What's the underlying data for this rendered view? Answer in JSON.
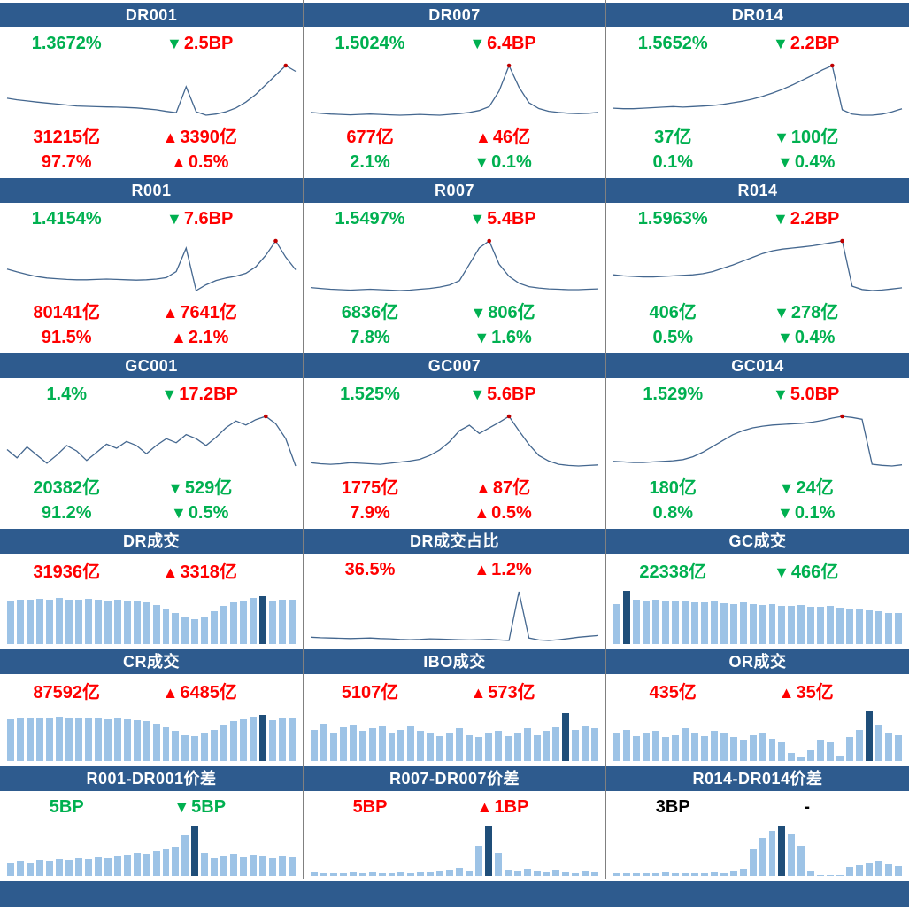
{
  "colors": {
    "up": "#ff0000",
    "down": "#00b050",
    "flat": "#000000",
    "header_bg": "#2e5b8e",
    "header_text": "#ffffff",
    "bar": "#9dc3e6",
    "bar_highlight": "#1f4e79",
    "line": "#44678f",
    "marker": "#c00000",
    "divider": "#808080"
  },
  "panels": [
    {
      "kind": "rate",
      "title": "DR001",
      "rate": "1.3672%",
      "rate_dir": "down",
      "change_arrow": "▼",
      "change_arrow_dir": "down",
      "change": "2.5BP",
      "change_dir": "up",
      "volume": "31215亿",
      "volume_dir": "up",
      "volume_arrow": "▲",
      "volume_arrow_dir": "up",
      "volume_change": "3390亿",
      "volume_change_dir": "up",
      "share": "97.7%",
      "share_dir": "up",
      "share_arrow": "▲",
      "share_arrow_dir": "up",
      "share_change": "0.5%",
      "share_change_dir": "up"
    },
    {
      "kind": "rate",
      "title": "DR007",
      "rate": "1.5024%",
      "rate_dir": "down",
      "change_arrow": "▼",
      "change_arrow_dir": "down",
      "change": "6.4BP",
      "change_dir": "up",
      "volume": "677亿",
      "volume_dir": "up",
      "volume_arrow": "▲",
      "volume_arrow_dir": "up",
      "volume_change": "46亿",
      "volume_change_dir": "up",
      "share": "2.1%",
      "share_dir": "down",
      "share_arrow": "▼",
      "share_arrow_dir": "down",
      "share_change": "0.1%",
      "share_change_dir": "down"
    },
    {
      "kind": "rate",
      "title": "DR014",
      "rate": "1.5652%",
      "rate_dir": "down",
      "change_arrow": "▼",
      "change_arrow_dir": "down",
      "change": "2.2BP",
      "change_dir": "up",
      "volume": "37亿",
      "volume_dir": "down",
      "volume_arrow": "▼",
      "volume_arrow_dir": "down",
      "volume_change": "100亿",
      "volume_change_dir": "down",
      "share": "0.1%",
      "share_dir": "down",
      "share_arrow": "▼",
      "share_arrow_dir": "down",
      "share_change": "0.4%",
      "share_change_dir": "down"
    },
    {
      "kind": "rate",
      "title": "R001",
      "rate": "1.4154%",
      "rate_dir": "down",
      "change_arrow": "▼",
      "change_arrow_dir": "down",
      "change": "7.6BP",
      "change_dir": "up",
      "volume": "80141亿",
      "volume_dir": "up",
      "volume_arrow": "▲",
      "volume_arrow_dir": "up",
      "volume_change": "7641亿",
      "volume_change_dir": "up",
      "share": "91.5%",
      "share_dir": "up",
      "share_arrow": "▲",
      "share_arrow_dir": "up",
      "share_change": "2.1%",
      "share_change_dir": "up"
    },
    {
      "kind": "rate",
      "title": "R007",
      "rate": "1.5497%",
      "rate_dir": "down",
      "change_arrow": "▼",
      "change_arrow_dir": "down",
      "change": "5.4BP",
      "change_dir": "up",
      "volume": "6836亿",
      "volume_dir": "down",
      "volume_arrow": "▼",
      "volume_arrow_dir": "down",
      "volume_change": "806亿",
      "volume_change_dir": "down",
      "share": "7.8%",
      "share_dir": "down",
      "share_arrow": "▼",
      "share_arrow_dir": "down",
      "share_change": "1.6%",
      "share_change_dir": "down"
    },
    {
      "kind": "rate",
      "title": "R014",
      "rate": "1.5963%",
      "rate_dir": "down",
      "change_arrow": "▼",
      "change_arrow_dir": "down",
      "change": "2.2BP",
      "change_dir": "up",
      "volume": "406亿",
      "volume_dir": "down",
      "volume_arrow": "▼",
      "volume_arrow_dir": "down",
      "volume_change": "278亿",
      "volume_change_dir": "down",
      "share": "0.5%",
      "share_dir": "down",
      "share_arrow": "▼",
      "share_arrow_dir": "down",
      "share_change": "0.4%",
      "share_change_dir": "down"
    },
    {
      "kind": "rate",
      "title": "GC001",
      "rate": "1.4%",
      "rate_dir": "down",
      "change_arrow": "▼",
      "change_arrow_dir": "down",
      "change": "17.2BP",
      "change_dir": "up",
      "volume": "20382亿",
      "volume_dir": "down",
      "volume_arrow": "▼",
      "volume_arrow_dir": "down",
      "volume_change": "529亿",
      "volume_change_dir": "down",
      "share": "91.2%",
      "share_dir": "down",
      "share_arrow": "▼",
      "share_arrow_dir": "down",
      "share_change": "0.5%",
      "share_change_dir": "down"
    },
    {
      "kind": "rate",
      "title": "GC007",
      "rate": "1.525%",
      "rate_dir": "down",
      "change_arrow": "▼",
      "change_arrow_dir": "down",
      "change": "5.6BP",
      "change_dir": "up",
      "volume": "1775亿",
      "volume_dir": "up",
      "volume_arrow": "▲",
      "volume_arrow_dir": "up",
      "volume_change": "87亿",
      "volume_change_dir": "up",
      "share": "7.9%",
      "share_dir": "up",
      "share_arrow": "▲",
      "share_arrow_dir": "up",
      "share_change": "0.5%",
      "share_change_dir": "up"
    },
    {
      "kind": "rate",
      "title": "GC014",
      "rate": "1.529%",
      "rate_dir": "down",
      "change_arrow": "▼",
      "change_arrow_dir": "down",
      "change": "5.0BP",
      "change_dir": "up",
      "volume": "180亿",
      "volume_dir": "down",
      "volume_arrow": "▼",
      "volume_arrow_dir": "down",
      "volume_change": "24亿",
      "volume_change_dir": "down",
      "share": "0.8%",
      "share_dir": "down",
      "share_arrow": "▼",
      "share_arrow_dir": "down",
      "share_change": "0.1%",
      "share_change_dir": "down"
    },
    {
      "kind": "volume",
      "title": "DR成交",
      "value": "31936亿",
      "value_dir": "up",
      "arrow": "▲",
      "arrow_dir": "up",
      "change": "3318亿",
      "change_dir": "up"
    },
    {
      "kind": "volume",
      "title": "DR成交占比",
      "value": "36.5%",
      "value_dir": "up",
      "arrow": "▲",
      "arrow_dir": "up",
      "change": "1.2%",
      "change_dir": "up"
    },
    {
      "kind": "volume",
      "title": "GC成交",
      "value": "22338亿",
      "value_dir": "down",
      "arrow": "▼",
      "arrow_dir": "down",
      "change": "466亿",
      "change_dir": "down"
    },
    {
      "kind": "volume",
      "title": "CR成交",
      "value": "87592亿",
      "value_dir": "up",
      "arrow": "▲",
      "arrow_dir": "up",
      "change": "6485亿",
      "change_dir": "up"
    },
    {
      "kind": "volume",
      "title": "IBO成交",
      "value": "5107亿",
      "value_dir": "up",
      "arrow": "▲",
      "arrow_dir": "up",
      "change": "573亿",
      "change_dir": "up"
    },
    {
      "kind": "volume",
      "title": "OR成交",
      "value": "435亿",
      "value_dir": "up",
      "arrow": "▲",
      "arrow_dir": "up",
      "change": "35亿",
      "change_dir": "up"
    },
    {
      "kind": "volume",
      "title": "R001-DR001价差",
      "value": "5BP",
      "value_dir": "down",
      "arrow": "▼",
      "arrow_dir": "down",
      "change": "5BP",
      "change_dir": "down"
    },
    {
      "kind": "volume",
      "title": "R007-DR007价差",
      "value": "5BP",
      "value_dir": "up",
      "arrow": "▲",
      "arrow_dir": "up",
      "change": "1BP",
      "change_dir": "up"
    },
    {
      "kind": "volume",
      "title": "R014-DR014价差",
      "value": "3BP",
      "value_dir": "flat",
      "arrow": "",
      "arrow_dir": "flat",
      "change": "-",
      "change_dir": "flat"
    }
  ],
  "chart_data": [
    {
      "panel": "DR001",
      "type": "line",
      "ylabel": "%",
      "values": [
        1.46,
        1.452,
        1.446,
        1.44,
        1.435,
        1.43,
        1.425,
        1.42,
        1.418,
        1.416,
        1.415,
        1.414,
        1.412,
        1.41,
        1.405,
        1.4,
        1.392,
        1.385,
        1.52,
        1.39,
        1.372,
        1.378,
        1.39,
        1.41,
        1.44,
        1.48,
        1.53,
        1.58,
        1.63,
        1.6
      ],
      "marker_index": 28
    },
    {
      "panel": "DR007",
      "type": "line",
      "ylabel": "%",
      "values": [
        1.505,
        1.503,
        1.501,
        1.5,
        1.499,
        1.5,
        1.501,
        1.5,
        1.499,
        1.498,
        1.499,
        1.5,
        1.499,
        1.498,
        1.5,
        1.502,
        1.505,
        1.51,
        1.52,
        1.56,
        1.625,
        1.57,
        1.53,
        1.515,
        1.508,
        1.505,
        1.503,
        1.502,
        1.503,
        1.505
      ],
      "marker_index": 20
    },
    {
      "panel": "DR014",
      "type": "line",
      "ylabel": "%",
      "values": [
        1.559,
        1.558,
        1.558,
        1.559,
        1.56,
        1.561,
        1.562,
        1.561,
        1.562,
        1.563,
        1.564,
        1.566,
        1.569,
        1.572,
        1.576,
        1.581,
        1.587,
        1.594,
        1.602,
        1.611,
        1.62,
        1.63,
        1.638,
        1.556,
        1.548,
        1.546,
        1.546,
        1.548,
        1.552,
        1.558
      ],
      "marker_index": 22
    },
    {
      "panel": "R001",
      "type": "line",
      "ylabel": "%",
      "values": [
        1.472,
        1.464,
        1.457,
        1.451,
        1.447,
        1.445,
        1.443,
        1.442,
        1.442,
        1.443,
        1.444,
        1.443,
        1.442,
        1.441,
        1.442,
        1.444,
        1.448,
        1.465,
        1.53,
        1.412,
        1.428,
        1.44,
        1.447,
        1.452,
        1.46,
        1.478,
        1.51,
        1.55,
        1.505,
        1.47
      ],
      "marker_index": 27
    },
    {
      "panel": "R007",
      "type": "line",
      "ylabel": "%",
      "values": [
        1.546,
        1.544,
        1.542,
        1.541,
        1.54,
        1.541,
        1.542,
        1.541,
        1.54,
        1.539,
        1.54,
        1.542,
        1.544,
        1.547,
        1.552,
        1.562,
        1.6,
        1.638,
        1.654,
        1.6,
        1.572,
        1.556,
        1.548,
        1.545,
        1.543,
        1.542,
        1.541,
        1.541,
        1.542,
        1.543
      ],
      "marker_index": 18
    },
    {
      "panel": "R014",
      "type": "line",
      "ylabel": "%",
      "values": [
        1.573,
        1.571,
        1.57,
        1.569,
        1.569,
        1.57,
        1.571,
        1.572,
        1.573,
        1.575,
        1.579,
        1.585,
        1.591,
        1.598,
        1.605,
        1.612,
        1.617,
        1.62,
        1.622,
        1.624,
        1.626,
        1.629,
        1.632,
        1.635,
        1.552,
        1.546,
        1.544,
        1.545,
        1.547,
        1.549
      ],
      "marker_index": 23
    },
    {
      "panel": "GC001",
      "type": "line",
      "ylabel": "%",
      "values": [
        1.46,
        1.43,
        1.47,
        1.44,
        1.41,
        1.44,
        1.475,
        1.455,
        1.42,
        1.45,
        1.48,
        1.465,
        1.49,
        1.475,
        1.445,
        1.475,
        1.5,
        1.485,
        1.515,
        1.5,
        1.475,
        1.505,
        1.54,
        1.565,
        1.55,
        1.57,
        1.582,
        1.555,
        1.5,
        1.4
      ],
      "marker_index": 26
    },
    {
      "panel": "GC007",
      "type": "line",
      "ylabel": "%",
      "values": [
        1.532,
        1.53,
        1.529,
        1.53,
        1.532,
        1.531,
        1.53,
        1.529,
        1.531,
        1.533,
        1.535,
        1.538,
        1.545,
        1.555,
        1.57,
        1.59,
        1.6,
        1.585,
        1.595,
        1.605,
        1.616,
        1.59,
        1.565,
        1.545,
        1.535,
        1.529,
        1.527,
        1.526,
        1.527,
        1.528
      ],
      "marker_index": 20
    },
    {
      "panel": "GC014",
      "type": "line",
      "ylabel": "%",
      "values": [
        1.532,
        1.531,
        1.53,
        1.53,
        1.531,
        1.532,
        1.533,
        1.535,
        1.54,
        1.548,
        1.558,
        1.568,
        1.578,
        1.585,
        1.59,
        1.593,
        1.595,
        1.596,
        1.597,
        1.598,
        1.6,
        1.603,
        1.607,
        1.61,
        1.608,
        1.605,
        1.527,
        1.525,
        1.524,
        1.526
      ],
      "marker_index": 23
    },
    {
      "panel": "DR成交",
      "type": "bar",
      "values": [
        78,
        80,
        79,
        81,
        80,
        82,
        80,
        79,
        81,
        80,
        78,
        80,
        77,
        76,
        74,
        70,
        63,
        55,
        48,
        45,
        50,
        58,
        68,
        74,
        78,
        82,
        85,
        76,
        80,
        79
      ],
      "highlight_index": 26
    },
    {
      "panel": "DR成交占比",
      "type": "line",
      "ylabel": "%",
      "values": [
        35.9,
        35.7,
        35.6,
        35.5,
        35.4,
        35.5,
        35.6,
        35.4,
        35.3,
        35.1,
        35.0,
        35.1,
        35.3,
        35.2,
        35.1,
        35.0,
        34.9,
        35.0,
        35.1,
        34.9,
        34.7,
        52.3,
        35.6,
        34.9,
        34.7,
        35.0,
        35.4,
        35.9,
        36.2,
        36.5
      ],
      "marker_index": null
    },
    {
      "panel": "GC成交",
      "type": "bar",
      "values": [
        72,
        96,
        80,
        78,
        79,
        77,
        76,
        78,
        75,
        74,
        76,
        73,
        72,
        74,
        71,
        70,
        72,
        69,
        68,
        70,
        67,
        66,
        68,
        65,
        64,
        62,
        60,
        58,
        56,
        55
      ],
      "highlight_index": 1
    },
    {
      "panel": "CR成交",
      "type": "bar",
      "values": [
        80,
        82,
        81,
        83,
        82,
        84,
        82,
        81,
        83,
        82,
        80,
        82,
        79,
        78,
        76,
        72,
        65,
        57,
        50,
        47,
        52,
        60,
        70,
        76,
        80,
        84,
        88,
        78,
        82,
        81
      ],
      "highlight_index": 26
    },
    {
      "panel": "IBO成交",
      "type": "bar",
      "values": [
        60,
        72,
        55,
        65,
        70,
        58,
        62,
        68,
        54,
        60,
        66,
        58,
        52,
        48,
        55,
        62,
        50,
        45,
        52,
        58,
        48,
        55,
        62,
        50,
        58,
        65,
        92,
        60,
        68,
        63
      ],
      "highlight_index": 26
    },
    {
      "panel": "OR成交",
      "type": "bar",
      "values": [
        55,
        60,
        48,
        52,
        58,
        45,
        50,
        62,
        55,
        48,
        58,
        52,
        45,
        40,
        50,
        55,
        42,
        35,
        15,
        8,
        20,
        40,
        35,
        10,
        45,
        60,
        95,
        70,
        55,
        50
      ],
      "highlight_index": 26
    },
    {
      "panel": "R001-DR001价差",
      "type": "bar",
      "values": [
        26,
        30,
        27,
        32,
        29,
        34,
        31,
        36,
        33,
        38,
        36,
        40,
        42,
        46,
        44,
        50,
        54,
        58,
        80,
        100,
        45,
        35,
        40,
        44,
        38,
        42,
        40,
        36,
        40,
        38
      ],
      "highlight_index": 19
    },
    {
      "panel": "R007-DR007价差",
      "type": "bar",
      "values": [
        8,
        6,
        7,
        5,
        8,
        6,
        9,
        7,
        6,
        8,
        7,
        9,
        8,
        10,
        12,
        15,
        10,
        60,
        100,
        45,
        12,
        10,
        14,
        10,
        8,
        12,
        9,
        7,
        10,
        8
      ],
      "highlight_index": 18
    },
    {
      "panel": "R014-DR014价差",
      "type": "bar",
      "values": [
        6,
        5,
        7,
        6,
        5,
        8,
        6,
        7,
        5,
        6,
        8,
        7,
        10,
        14,
        55,
        75,
        90,
        100,
        85,
        60,
        10,
        2,
        2,
        2,
        18,
        22,
        26,
        30,
        24,
        20
      ],
      "highlight_index": 17
    }
  ]
}
